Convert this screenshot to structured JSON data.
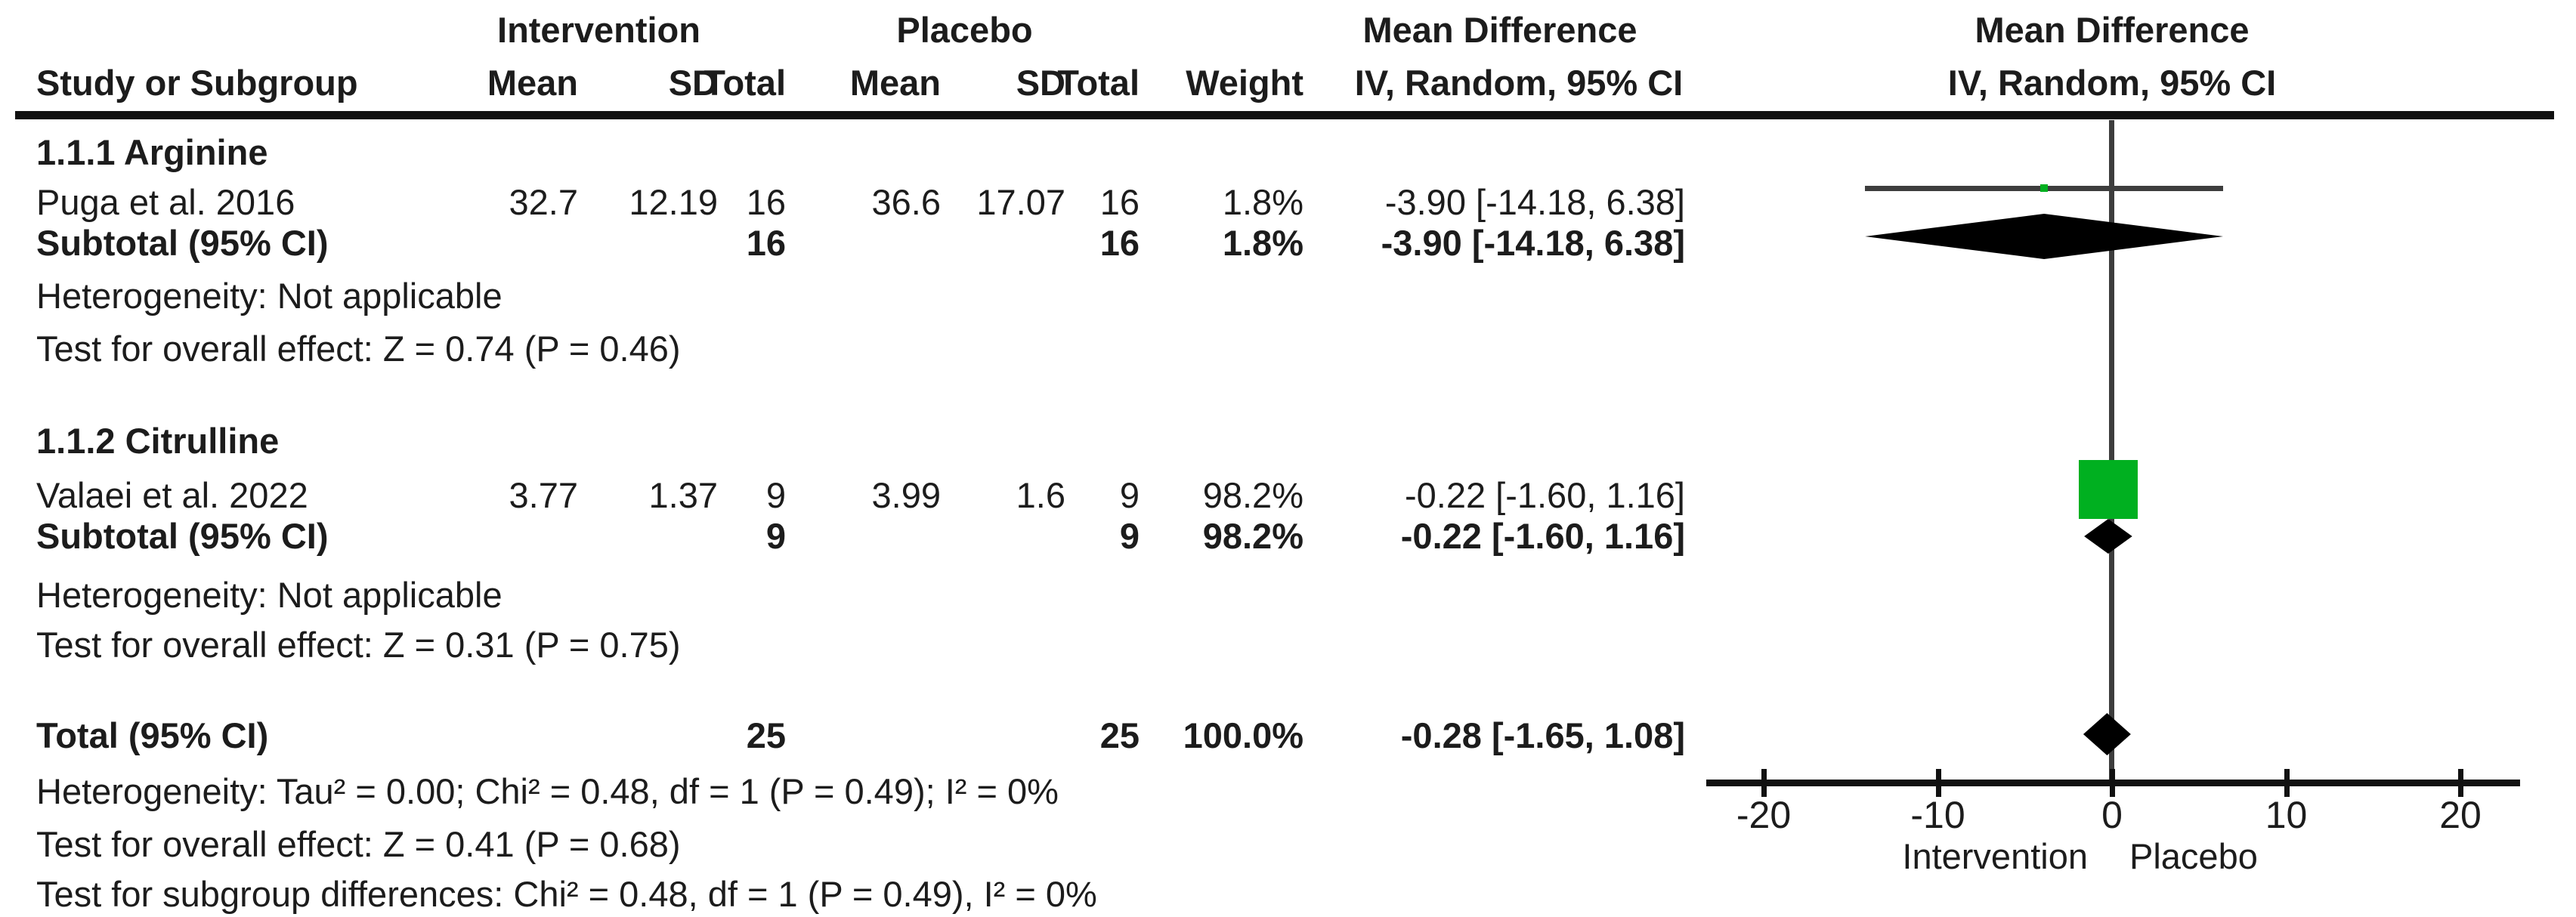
{
  "header": {
    "study": "Study or Subgroup",
    "intervention_group": "Intervention",
    "placebo_group": "Placebo",
    "mean_i": "Mean",
    "sd_i": "SD",
    "total_i": "Total",
    "mean_p": "Mean",
    "sd_p": "SD",
    "total_p": "Total",
    "weight": "Weight",
    "effect": "Mean Difference",
    "effect_sub": "IV, Random, 95% CI",
    "plot_effect": "Mean Difference",
    "plot_effect_sub": "IV, Random, 95% CI"
  },
  "rows": {
    "group1": "1.1.1 Arginine",
    "puga": {
      "study": "Puga et al. 2016",
      "mean_i": "32.7",
      "sd_i": "12.19",
      "total_i": "16",
      "mean_p": "36.6",
      "sd_p": "17.07",
      "total_p": "16",
      "weight": "1.8%",
      "ci": "-3.90 [-14.18, 6.38]"
    },
    "subtotal1": {
      "study": "Subtotal (95% CI)",
      "total_i": "16",
      "total_p": "16",
      "weight": "1.8%",
      "ci": "-3.90 [-14.18, 6.38]"
    },
    "het1": "Heterogeneity: Not applicable",
    "test1": "Test for overall effect: Z = 0.74 (P = 0.46)",
    "group2": "1.1.2 Citrulline",
    "valaei": {
      "study": "Valaei et al. 2022",
      "mean_i": "3.77",
      "sd_i": "1.37",
      "total_i": "9",
      "mean_p": "3.99",
      "sd_p": "1.6",
      "total_p": "9",
      "weight": "98.2%",
      "ci": "-0.22 [-1.60, 1.16]"
    },
    "subtotal2": {
      "study": "Subtotal (95% CI)",
      "total_i": "9",
      "total_p": "9",
      "weight": "98.2%",
      "ci": "-0.22 [-1.60, 1.16]"
    },
    "het2": "Heterogeneity: Not applicable",
    "test2": "Test for overall effect: Z = 0.31 (P = 0.75)",
    "total": {
      "study": "Total (95% CI)",
      "total_i": "25",
      "total_p": "25",
      "weight": "100.0%",
      "ci": "-0.28 [-1.65, 1.08]"
    },
    "het_total": "Heterogeneity: Tau² = 0.00; Chi² = 0.48, df = 1 (P = 0.49); I² = 0%",
    "test_total": "Test for overall effect: Z = 0.41 (P = 0.68)",
    "subgroup_diff": "Test for subgroup differences: Chi² = 0.48, df = 1 (P = 0.49), I² = 0%"
  },
  "axis": {
    "left_label": "Intervention",
    "right_label": "Placebo"
  },
  "colors": {
    "study_marker_green": "#00b020",
    "pooled_diamond_black": "#000000",
    "line_gray": "#3d3d3d"
  },
  "chart_data": {
    "type": "forest",
    "title": "Mean Difference, IV, Random, 95% CI",
    "xlabel_left": "Intervention",
    "xlabel_right": "Placebo",
    "xlim": [
      -23.3,
      23.3
    ],
    "x_ticks": [
      -20,
      -10,
      0,
      10,
      20
    ],
    "subgroups": [
      {
        "name": "1.1.1 Arginine",
        "studies": [
          {
            "name": "Puga et al. 2016",
            "mean_i": 32.7,
            "sd_i": 12.19,
            "n_i": 16,
            "mean_p": 36.6,
            "sd_p": 17.07,
            "n_p": 16,
            "weight_pct": 1.8,
            "md": -3.9,
            "ci": [
              -14.18,
              6.38
            ]
          }
        ],
        "subtotal": {
          "n_i": 16,
          "n_p": 16,
          "weight_pct": 1.8,
          "md": -3.9,
          "ci": [
            -14.18,
            6.38
          ],
          "heterogeneity": "Not applicable",
          "overall_effect": "Z = 0.74 (P = 0.46)"
        }
      },
      {
        "name": "1.1.2 Citrulline",
        "studies": [
          {
            "name": "Valaei et al. 2022",
            "mean_i": 3.77,
            "sd_i": 1.37,
            "n_i": 9,
            "mean_p": 3.99,
            "sd_p": 1.6,
            "n_p": 9,
            "weight_pct": 98.2,
            "md": -0.22,
            "ci": [
              -1.6,
              1.16
            ]
          }
        ],
        "subtotal": {
          "n_i": 9,
          "n_p": 9,
          "weight_pct": 98.2,
          "md": -0.22,
          "ci": [
            -1.6,
            1.16
          ],
          "heterogeneity": "Not applicable",
          "overall_effect": "Z = 0.31 (P = 0.75)"
        }
      }
    ],
    "total": {
      "n_i": 25,
      "n_p": 25,
      "weight_pct": 100.0,
      "md": -0.28,
      "ci": [
        -1.65,
        1.08
      ],
      "heterogeneity": "Tau² = 0.00; Chi² = 0.48, df = 1 (P = 0.49); I² = 0%",
      "overall_effect": "Z = 0.41 (P = 0.68)",
      "subgroup_differences": "Chi² = 0.48, df = 1 (P = 0.49), I² = 0%"
    }
  }
}
